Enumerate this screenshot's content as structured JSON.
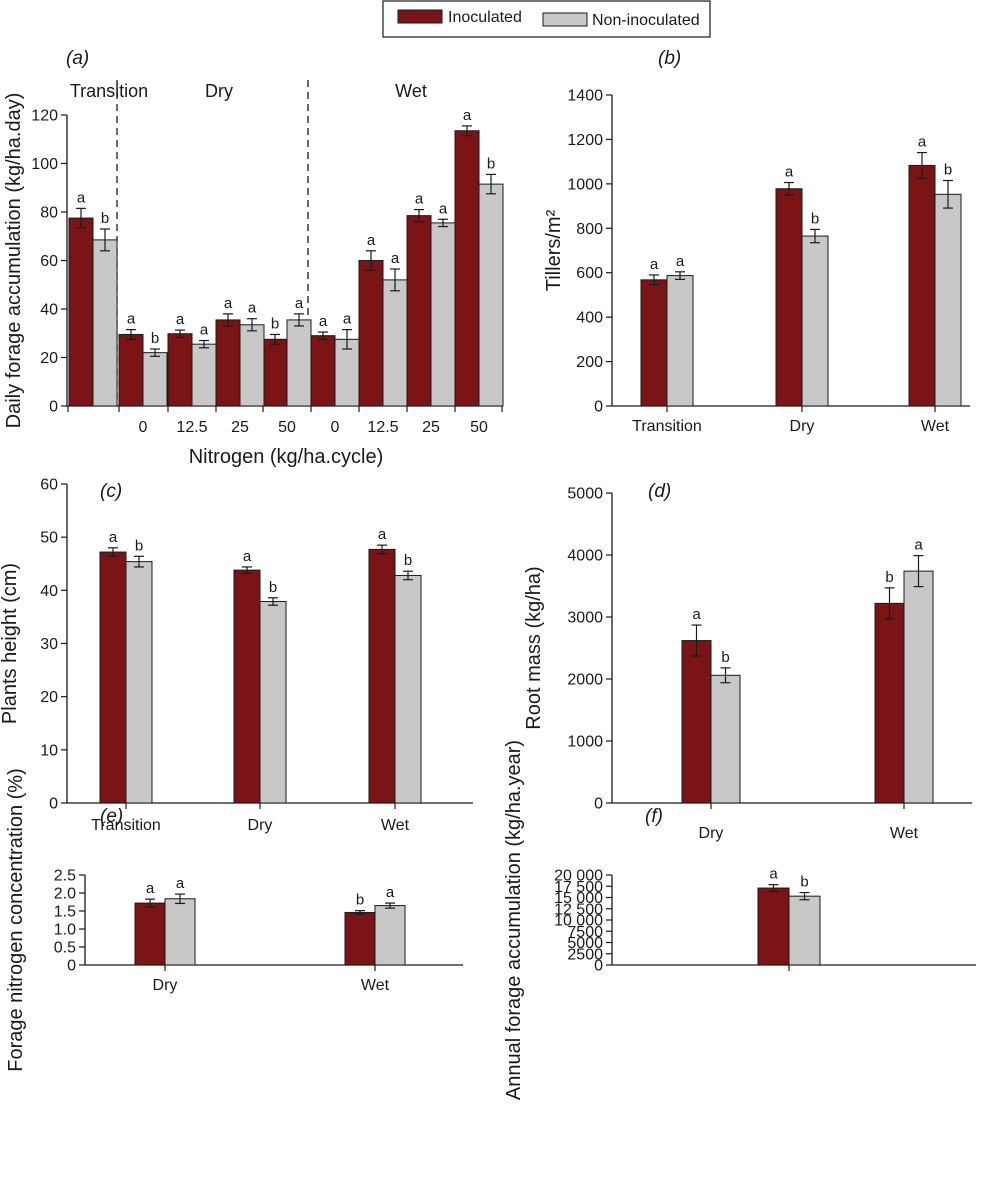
{
  "colors": {
    "inoculated": "#7a1416",
    "non_inoculated": "#c8c8c8",
    "axis": "#1a1a1a"
  },
  "legend": {
    "series1": "Inoculated",
    "series2": "Non-inoculated"
  },
  "chart_data": [
    {
      "panel": "(a)",
      "type": "bar",
      "ylabel": "Daily forage accumulation (kg/ha.day)",
      "xlabel": "Nitrogen (kg/ha.cycle)",
      "ylim": [
        0,
        120
      ],
      "yticks": [
        "0",
        "20",
        "40",
        "60",
        "80",
        "100",
        "120"
      ],
      "segments": [
        "Transition",
        "Dry",
        "Wet"
      ],
      "categories": [
        "",
        "0",
        "12.5",
        "25",
        "50",
        "0",
        "12.5",
        "25",
        "50"
      ],
      "series": [
        {
          "name": "Inoculated",
          "values": [
            77.5,
            29.5,
            29.8,
            35.5,
            27.5,
            29,
            60,
            78.5,
            113.5
          ],
          "errors": [
            4,
            2,
            1.5,
            2.5,
            2,
            1.5,
            4,
            2.5,
            2
          ],
          "letters": [
            "a",
            "a",
            "a",
            "a",
            "b",
            "a",
            "a",
            "a",
            "a"
          ]
        },
        {
          "name": "Non-inoculated",
          "values": [
            68.5,
            22,
            25.5,
            33.5,
            35.5,
            27.5,
            52,
            75.5,
            91.5
          ],
          "errors": [
            4.5,
            1.5,
            1.5,
            2.5,
            2.5,
            4,
            4.5,
            1.5,
            4
          ],
          "letters": [
            "b",
            "b",
            "a",
            "a",
            "a",
            "a",
            "a",
            "a",
            "b"
          ]
        }
      ]
    },
    {
      "panel": "(b)",
      "type": "bar",
      "ylabel": "Tillers/m²",
      "xlabel": "",
      "ylim": [
        0,
        1400
      ],
      "yticks": [
        "0",
        "200",
        "400",
        "600",
        "800",
        "1000",
        "1200",
        "1400"
      ],
      "categories": [
        "Transition",
        "Dry",
        "Wet"
      ],
      "series": [
        {
          "name": "Inoculated",
          "values": [
            568,
            978,
            1083
          ],
          "errors": [
            22,
            28,
            58
          ],
          "letters": [
            "a",
            "a",
            "a"
          ]
        },
        {
          "name": "Non-inoculated",
          "values": [
            587,
            765,
            953
          ],
          "errors": [
            17,
            30,
            62
          ],
          "letters": [
            "a",
            "b",
            "b"
          ]
        }
      ]
    },
    {
      "panel": "(c)",
      "type": "bar",
      "ylabel": "Plants height (cm)",
      "xlabel": "",
      "ylim": [
        0,
        60
      ],
      "yticks": [
        "0",
        "10",
        "20",
        "30",
        "40",
        "50",
        "60"
      ],
      "categories": [
        "Transition",
        "Dry",
        "Wet"
      ],
      "series": [
        {
          "name": "Inoculated",
          "values": [
            47.2,
            43.8,
            47.7
          ],
          "errors": [
            0.8,
            0.6,
            0.8
          ],
          "letters": [
            "a",
            "a",
            "a"
          ]
        },
        {
          "name": "Non-inoculated",
          "values": [
            45.4,
            37.9,
            42.8
          ],
          "errors": [
            1.0,
            0.7,
            0.8
          ],
          "letters": [
            "b",
            "b",
            "b"
          ]
        }
      ]
    },
    {
      "panel": "(d)",
      "type": "bar",
      "ylabel": "Root mass (kg/ha)",
      "xlabel": "",
      "ylim": [
        0,
        5000
      ],
      "yticks": [
        "0",
        "1000",
        "2000",
        "3000",
        "4000",
        "5000"
      ],
      "categories": [
        "Dry",
        "Wet"
      ],
      "series": [
        {
          "name": "Inoculated",
          "values": [
            2620,
            3220
          ],
          "errors": [
            250,
            250
          ],
          "letters": [
            "a",
            "b"
          ]
        },
        {
          "name": "Non-inoculated",
          "values": [
            2060,
            3740
          ],
          "errors": [
            120,
            250
          ],
          "letters": [
            "b",
            "a"
          ]
        }
      ]
    },
    {
      "panel": "(e)",
      "type": "bar",
      "ylabel": "Forage nitrogen concentration (%)",
      "xlabel": "",
      "ylim": [
        0,
        2.5
      ],
      "yticks": [
        "0",
        "0.5",
        "1.0",
        "1.5",
        "2.0",
        "2.5"
      ],
      "categories": [
        "Dry",
        "Wet"
      ],
      "series": [
        {
          "name": "Inoculated",
          "values": [
            1.72,
            1.46
          ],
          "errors": [
            0.11,
            0.05
          ],
          "letters": [
            "a",
            "b"
          ]
        },
        {
          "name": "Non-inoculated",
          "values": [
            1.84,
            1.65
          ],
          "errors": [
            0.13,
            0.07
          ],
          "letters": [
            "a",
            "a"
          ]
        }
      ]
    },
    {
      "panel": "(f)",
      "type": "bar",
      "ylabel": "Annual forage accumulation (kg/ha.year)",
      "xlabel": "",
      "ylim": [
        0,
        20000
      ],
      "yticks": [
        "0",
        "2500",
        "5000",
        "7500",
        "10 000",
        "12 500",
        "15 000",
        "17 500",
        "20 000"
      ],
      "categories": [
        ""
      ],
      "series": [
        {
          "name": "Inoculated",
          "values": [
            17100
          ],
          "errors": [
            750
          ],
          "letters": [
            "a"
          ]
        },
        {
          "name": "Non-inoculated",
          "values": [
            15300
          ],
          "errors": [
            800
          ],
          "letters": [
            "b"
          ]
        }
      ]
    }
  ]
}
